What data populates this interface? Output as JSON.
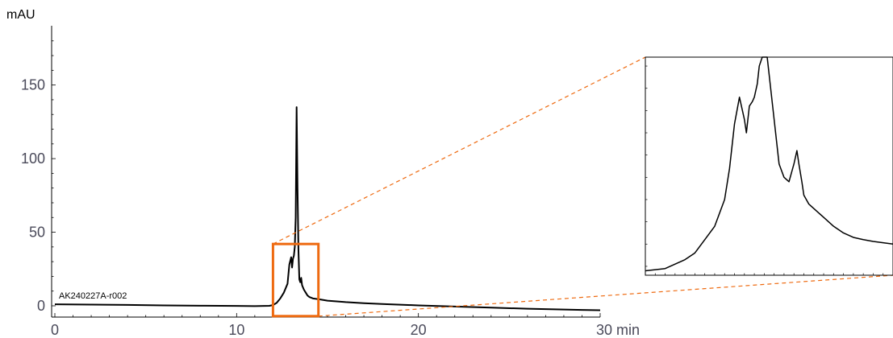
{
  "chart_data": [
    {
      "type": "line",
      "ylabel": "mAU",
      "xunit": "min",
      "xlim": [
        0,
        30
      ],
      "ylim": [
        -3,
        185
      ],
      "x_ticks": [
        0,
        10,
        20,
        30
      ],
      "x_tick_labels": [
        "0",
        "10",
        "20",
        "30 min"
      ],
      "y_ticks": [
        0,
        50,
        100,
        150
      ],
      "y_tick_labels": [
        "0",
        "50",
        "100",
        "150"
      ],
      "trace_label": "AK240227A-r002",
      "line_color": "#000000",
      "highlight_color": "#ee6a10",
      "zoom_window": {
        "x": [
          12.0,
          14.5
        ],
        "y": [
          -7,
          42
        ]
      },
      "series": [
        {
          "x": [
            0,
            2,
            4,
            6,
            8,
            10,
            11,
            11.8,
            12.0,
            12.2,
            12.4,
            12.6,
            12.8,
            12.9,
            13.0,
            13.05,
            13.1,
            13.15,
            13.2,
            13.25,
            13.3,
            13.35,
            13.4,
            13.45,
            13.5,
            13.55,
            13.6,
            13.7,
            13.8,
            13.9,
            14.0,
            14.2,
            14.5,
            15,
            16,
            17,
            18,
            20,
            22,
            24,
            26,
            28,
            29,
            30
          ],
          "y": [
            1,
            0.8,
            0.6,
            0.3,
            0.1,
            -0.1,
            -0.2,
            0,
            0.5,
            2,
            5,
            9,
            15,
            28,
            33,
            26,
            32,
            34,
            40,
            60,
            135,
            80,
            38,
            18,
            16,
            19,
            14,
            11,
            9,
            7,
            6,
            5,
            4.5,
            3.5,
            2.5,
            1.8,
            1.2,
            0.3,
            -0.5,
            -1.2,
            -2,
            -2.5,
            -2.8,
            -3
          ]
        }
      ]
    },
    {
      "type": "line",
      "xlim": [
        12.0,
        14.5
      ],
      "ylim": [
        -7,
        42
      ],
      "series": [
        {
          "x": [
            12.0,
            12.2,
            12.3,
            12.4,
            12.5,
            12.6,
            12.7,
            12.8,
            12.85,
            12.9,
            12.95,
            13.0,
            13.02,
            13.05,
            13.08,
            13.1,
            13.13,
            13.15,
            13.18,
            13.2,
            13.21,
            13.22,
            13.23,
            13.3,
            13.35,
            13.4,
            13.45,
            13.5,
            13.53,
            13.55,
            13.58,
            13.6,
            13.65,
            13.7,
            13.8,
            13.9,
            14.0,
            14.1,
            14.2,
            14.3,
            14.4,
            14.5
          ],
          "y": [
            -6,
            -5.5,
            -4.5,
            -3.5,
            -2,
            1,
            4,
            10,
            17,
            27,
            33,
            28,
            25,
            31,
            32,
            33,
            36,
            40,
            42,
            42,
            42,
            42,
            42,
            28,
            18,
            15,
            14,
            18,
            21,
            18,
            14,
            11,
            9,
            8,
            6,
            4,
            2.5,
            1.5,
            1,
            0.6,
            0.3,
            0
          ]
        }
      ]
    }
  ]
}
